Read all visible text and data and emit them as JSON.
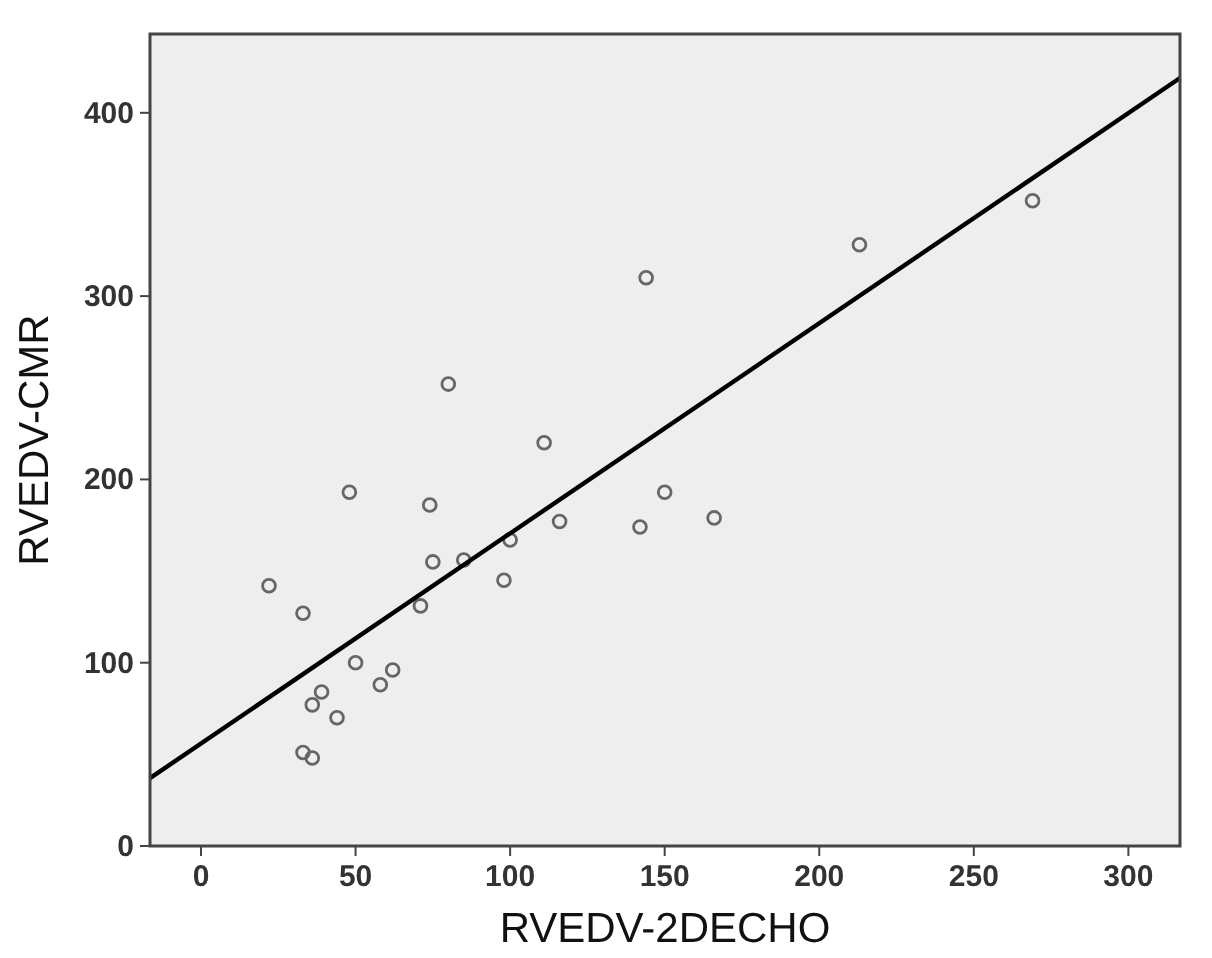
{
  "chart_data": {
    "type": "scatter",
    "xlabel": "RVEDV-2DECHO",
    "ylabel": "RVEDV-CMR",
    "xlim": [
      -16.5,
      316.7
    ],
    "ylim": [
      0,
      443
    ],
    "xticks": [
      0,
      50,
      100,
      150,
      200,
      250,
      300
    ],
    "yticks": [
      0,
      100,
      200,
      300,
      400
    ],
    "grid": false,
    "marker": "circle",
    "series": [
      {
        "color": "#666666",
        "x": [
          22,
          33,
          48,
          50,
          39,
          36,
          44,
          33,
          36,
          58,
          62,
          71,
          74,
          75,
          80,
          85,
          98,
          100,
          111,
          116,
          142,
          144,
          150,
          166,
          213,
          269
        ],
        "values": [
          142,
          127,
          193,
          100,
          84,
          77,
          70,
          51,
          48,
          88,
          96,
          131,
          186,
          155,
          252,
          156,
          145,
          167,
          220,
          177,
          174,
          310,
          193,
          179,
          328,
          352
        ]
      },
      {
        "type": "line",
        "color": "#000000",
        "marker": "none",
        "line_style": "solid",
        "x": [
          -16.5,
          316.7
        ],
        "values": [
          37,
          419
        ]
      }
    ]
  }
}
